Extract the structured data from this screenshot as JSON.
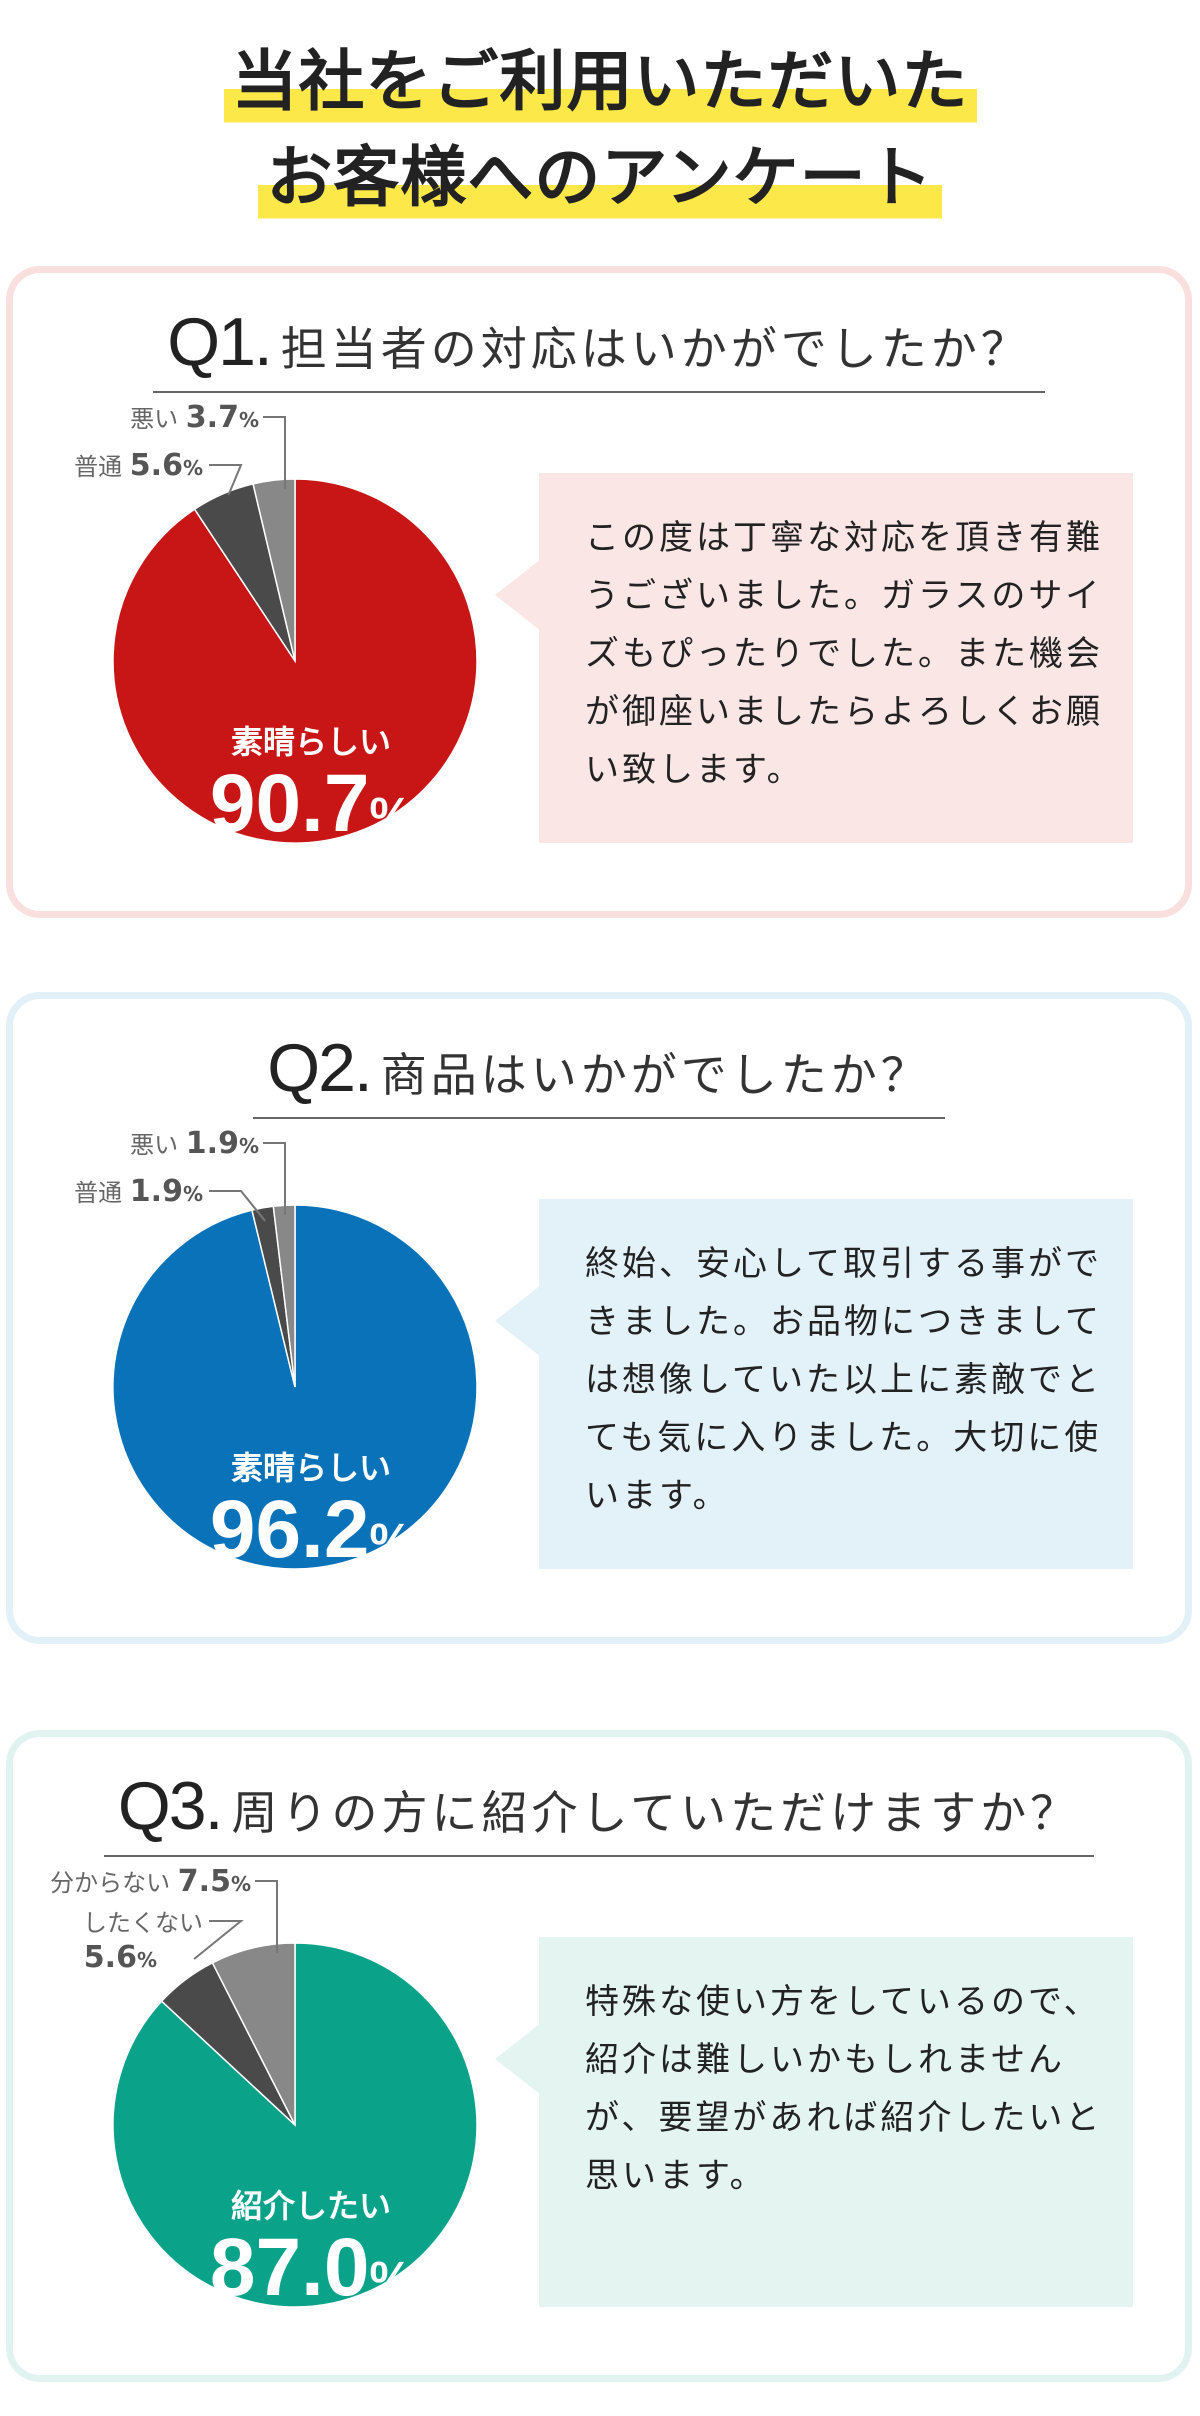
{
  "header": {
    "title_line1": "当社をご利用いただいた",
    "title_line2": "お客様へのアンケート"
  },
  "colors": {
    "highlight": "#fde84a",
    "q1_main": "#c81515",
    "q2_main": "#0a72b8",
    "q3_main": "#0aa38a",
    "dark_slice": "#4a4a4a",
    "gray_slice": "#888888"
  },
  "questions": [
    {
      "number": "Q1.",
      "text": "担当者の対応はいかがでしたか？",
      "comment": "この度は丁寧な対応を頂き有難うございました。ガラスのサイズもぴったりでした。また機会が御座いましたらよろしくお願い致します。",
      "main_label": "素晴らしい",
      "main_value_num": "90.7",
      "main_value_pct": "%",
      "other1_label": "普通",
      "other1_value": "5.6",
      "other2_label": "悪い",
      "other2_value": "3.7",
      "pct": "%"
    },
    {
      "number": "Q2.",
      "text": "商品はいかがでしたか？",
      "comment": "終始、安心して取引する事ができました。お品物につきましては想像していた以上に素敵でとても気に入りました。大切に使います。",
      "main_label": "素晴らしい",
      "main_value_num": "96.2",
      "main_value_pct": "%",
      "other1_label": "普通",
      "other1_value": "1.9",
      "other2_label": "悪い",
      "other2_value": "1.9",
      "pct": "%"
    },
    {
      "number": "Q3.",
      "text": "周りの方に紹介していただけますか？",
      "comment": "特殊な使い方をしているので、紹介は難しいかもしれませんが、要望があれば紹介したいと思います。",
      "main_label": "紹介したい",
      "main_value_num": "87.0",
      "main_value_pct": "%",
      "other1_label": "したくない",
      "other1_value": "5.6",
      "other2_label": "分からない",
      "other2_value": "7.5",
      "pct": "%"
    }
  ],
  "chart_data": [
    {
      "type": "pie",
      "title": "Q1. 担当者の対応はいかがでしたか？",
      "categories": [
        "素晴らしい",
        "普通",
        "悪い"
      ],
      "values": [
        90.7,
        5.6,
        3.7
      ],
      "colors": [
        "#c81515",
        "#4a4a4a",
        "#888888"
      ]
    },
    {
      "type": "pie",
      "title": "Q2. 商品はいかがでしたか？",
      "categories": [
        "素晴らしい",
        "普通",
        "悪い"
      ],
      "values": [
        96.2,
        1.9,
        1.9
      ],
      "colors": [
        "#0a72b8",
        "#4a4a4a",
        "#888888"
      ]
    },
    {
      "type": "pie",
      "title": "Q3. 周りの方に紹介していただけますか？",
      "categories": [
        "紹介したい",
        "したくない",
        "分からない"
      ],
      "values": [
        87.0,
        5.6,
        7.5
      ],
      "colors": [
        "#0aa38a",
        "#4a4a4a",
        "#888888"
      ]
    }
  ]
}
